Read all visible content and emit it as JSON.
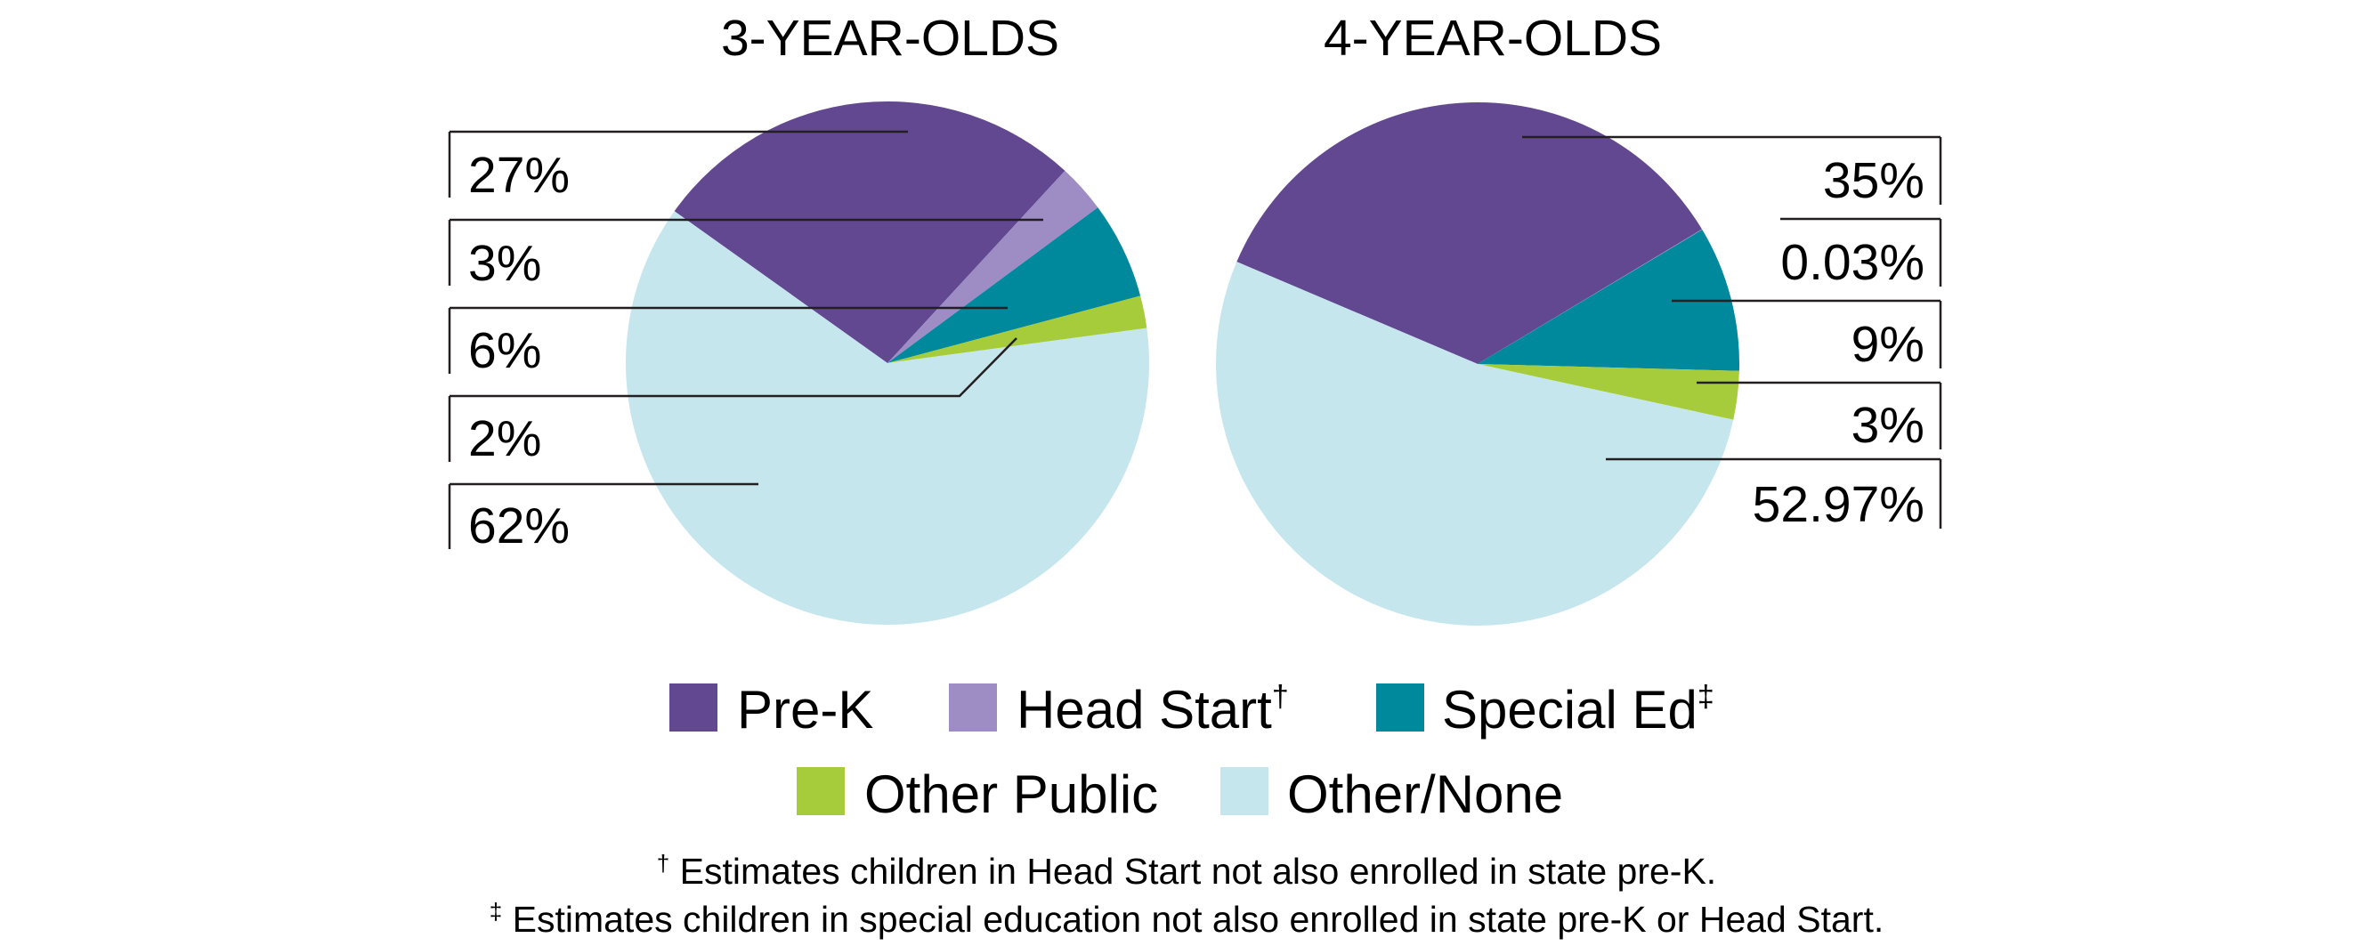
{
  "chart_data": [
    {
      "type": "pie",
      "title": "3-YEAR-OLDS",
      "slices": [
        {
          "name": "Pre-K",
          "value": 27,
          "label": "27%"
        },
        {
          "name": "Head Start",
          "value": 3,
          "label": "3%"
        },
        {
          "name": "Special Ed",
          "value": 6,
          "label": "6%"
        },
        {
          "name": "Other Public",
          "value": 2,
          "label": "2%"
        },
        {
          "name": "Other/None",
          "value": 62,
          "label": "62%"
        }
      ]
    },
    {
      "type": "pie",
      "title": "4-YEAR-OLDS",
      "slices": [
        {
          "name": "Pre-K",
          "value": 35,
          "label": "35%"
        },
        {
          "name": "Head Start",
          "value": 0.03,
          "label": "0.03%"
        },
        {
          "name": "Special Ed",
          "value": 9,
          "label": "9%"
        },
        {
          "name": "Other Public",
          "value": 3,
          "label": "3%"
        },
        {
          "name": "Other/None",
          "value": 52.97,
          "label": "52.97%"
        }
      ]
    }
  ],
  "legend": [
    {
      "name": "Pre-K",
      "label": "Pre-K",
      "mark": "",
      "color": "#624891"
    },
    {
      "name": "Head Start",
      "label": "Head Start",
      "mark": "†",
      "color": "#9d8dc4"
    },
    {
      "name": "Special Ed",
      "label": "Special Ed",
      "mark": "‡",
      "color": "#00899d"
    },
    {
      "name": "Other Public",
      "label": "Other Public",
      "mark": "",
      "color": "#a6cc3c"
    },
    {
      "name": "Other/None",
      "label": "Other/None",
      "mark": "",
      "color": "#c6e6ee"
    }
  ],
  "footnotes": [
    {
      "mark": "†",
      "text": "Estimates children in Head Start not also enrolled in state pre-K."
    },
    {
      "mark": "‡",
      "text": "Estimates children in special education not also enrolled in state pre-K or Head Start."
    }
  ]
}
